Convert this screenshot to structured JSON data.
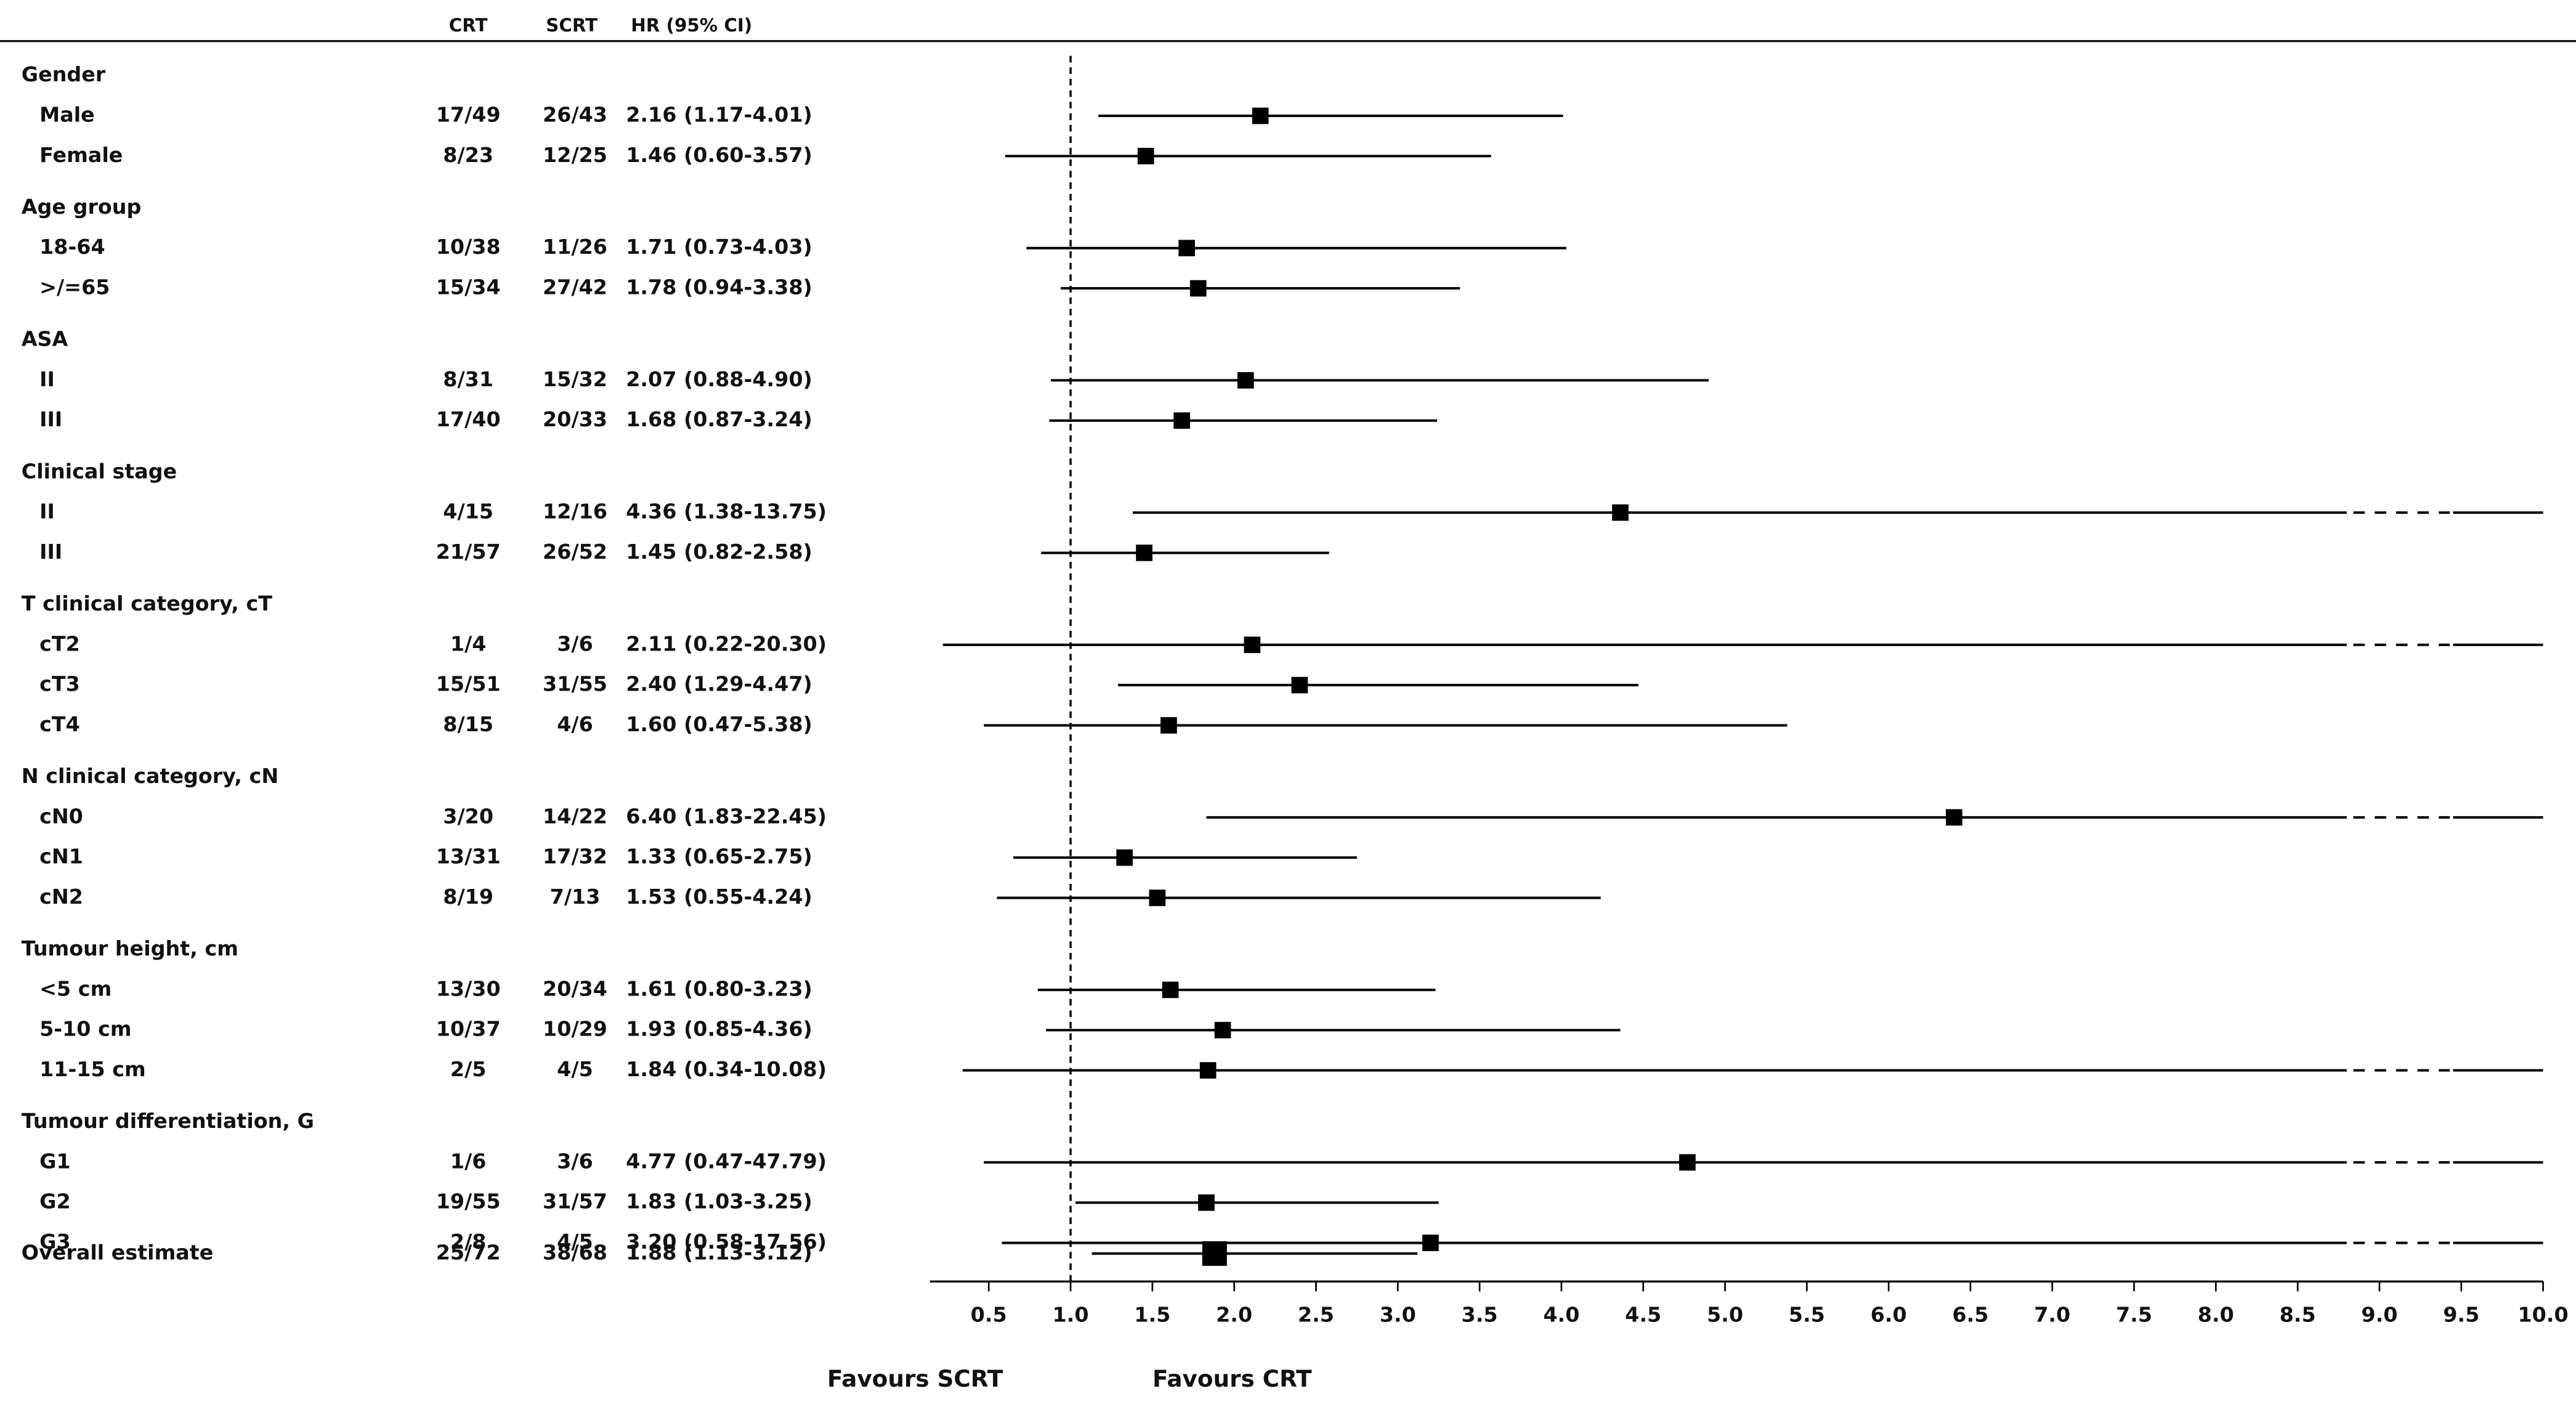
{
  "chart_data": {
    "type": "forest",
    "columns": [
      "CRT",
      "SCRT",
      "HR (95% CI)"
    ],
    "groups": [
      {
        "label": "Gender",
        "rows": [
          {
            "label": "Male",
            "crt": "17/49",
            "scrt": "26/43",
            "hr_label": "2.16 (1.17-4.01)",
            "hr": 2.16,
            "lo": 1.17,
            "hi": 4.01
          },
          {
            "label": "Female",
            "crt": "8/23",
            "scrt": "12/25",
            "hr_label": "1.46 (0.60-3.57)",
            "hr": 1.46,
            "lo": 0.6,
            "hi": 3.57
          }
        ]
      },
      {
        "label": "Age group",
        "rows": [
          {
            "label": "18-64",
            "crt": "10/38",
            "scrt": "11/26",
            "hr_label": "1.71 (0.73-4.03)",
            "hr": 1.71,
            "lo": 0.73,
            "hi": 4.03
          },
          {
            "label": ">/=65",
            "crt": "15/34",
            "scrt": "27/42",
            "hr_label": "1.78 (0.94-3.38)",
            "hr": 1.78,
            "lo": 0.94,
            "hi": 3.38
          }
        ]
      },
      {
        "label": "ASA",
        "rows": [
          {
            "label": "II",
            "crt": "8/31",
            "scrt": "15/32",
            "hr_label": "2.07 (0.88-4.90)",
            "hr": 2.07,
            "lo": 0.88,
            "hi": 4.9
          },
          {
            "label": "III",
            "crt": "17/40",
            "scrt": "20/33",
            "hr_label": "1.68 (0.87-3.24)",
            "hr": 1.68,
            "lo": 0.87,
            "hi": 3.24
          }
        ]
      },
      {
        "label": "Clinical stage",
        "rows": [
          {
            "label": "II",
            "crt": "4/15",
            "scrt": "12/16",
            "hr_label": "4.36 (1.38-13.75)",
            "hr": 4.36,
            "lo": 1.38,
            "hi": 13.75
          },
          {
            "label": "III",
            "crt": "21/57",
            "scrt": "26/52",
            "hr_label": "1.45 (0.82-2.58)",
            "hr": 1.45,
            "lo": 0.82,
            "hi": 2.58
          }
        ]
      },
      {
        "label": "T clinical category, cT",
        "rows": [
          {
            "label": "cT2",
            "crt": "1/4",
            "scrt": "3/6",
            "hr_label": "2.11 (0.22-20.30)",
            "hr": 2.11,
            "lo": 0.22,
            "hi": 20.3
          },
          {
            "label": "cT3",
            "crt": "15/51",
            "scrt": "31/55",
            "hr_label": "2.40 (1.29-4.47)",
            "hr": 2.4,
            "lo": 1.29,
            "hi": 4.47
          },
          {
            "label": "cT4",
            "crt": "8/15",
            "scrt": "4/6",
            "hr_label": "1.60 (0.47-5.38)",
            "hr": 1.6,
            "lo": 0.47,
            "hi": 5.38
          }
        ]
      },
      {
        "label": "N clinical category, cN",
        "rows": [
          {
            "label": "cN0",
            "crt": "3/20",
            "scrt": "14/22",
            "hr_label": "6.40 (1.83-22.45)",
            "hr": 6.4,
            "lo": 1.83,
            "hi": 22.45
          },
          {
            "label": "cN1",
            "crt": "13/31",
            "scrt": "17/32",
            "hr_label": "1.33 (0.65-2.75)",
            "hr": 1.33,
            "lo": 0.65,
            "hi": 2.75
          },
          {
            "label": "cN2",
            "crt": "8/19",
            "scrt": "7/13",
            "hr_label": "1.53 (0.55-4.24)",
            "hr": 1.53,
            "lo": 0.55,
            "hi": 4.24
          }
        ]
      },
      {
        "label": "Tumour height, cm",
        "rows": [
          {
            "label": "<5 cm",
            "crt": "13/30",
            "scrt": "20/34",
            "hr_label": "1.61 (0.80-3.23)",
            "hr": 1.61,
            "lo": 0.8,
            "hi": 3.23
          },
          {
            "label": "5-10 cm",
            "crt": "10/37",
            "scrt": "10/29",
            "hr_label": "1.93 (0.85-4.36)",
            "hr": 1.93,
            "lo": 0.85,
            "hi": 4.36
          },
          {
            "label": "11-15 cm",
            "crt": "2/5",
            "scrt": "4/5",
            "hr_label": "1.84 (0.34-10.08)",
            "hr": 1.84,
            "lo": 0.34,
            "hi": 10.08
          }
        ]
      },
      {
        "label": "Tumour differentiation, G",
        "rows": [
          {
            "label": "G1",
            "crt": "1/6",
            "scrt": "3/6",
            "hr_label": "4.77 (0.47-47.79)",
            "hr": 4.77,
            "lo": 0.47,
            "hi": 47.79
          },
          {
            "label": "G2",
            "crt": "19/55",
            "scrt": "31/57",
            "hr_label": "1.83 (1.03-3.25)",
            "hr": 1.83,
            "lo": 1.03,
            "hi": 3.25
          },
          {
            "label": "G3",
            "crt": "2/8",
            "scrt": "4/5",
            "hr_label": "3.20 (0.58-17.56)",
            "hr": 3.2,
            "lo": 0.58,
            "hi": 17.56
          }
        ]
      }
    ],
    "overall": {
      "label": "Overall estimate",
      "crt": "25/72",
      "scrt": "38/68",
      "hr_label": "1.88 (1.13-3.12)",
      "hr": 1.88,
      "lo": 1.13,
      "hi": 3.12
    },
    "reference": 1,
    "xlim": [
      0.14,
      10.0
    ],
    "xticks": [
      0.5,
      {
        "value": 1,
        "label": "1.0"
      },
      1.5,
      {
        "value": 2,
        "label": "2.0"
      },
      2.5,
      {
        "value": 3,
        "label": "3.0"
      },
      3.5,
      {
        "value": 4,
        "label": "4.0"
      },
      4.5,
      {
        "value": 5,
        "label": "5.0"
      },
      5.5,
      {
        "value": 6,
        "label": "6.0"
      },
      6.5,
      {
        "value": 7,
        "label": "7.0"
      },
      7.5,
      {
        "value": 8,
        "label": "8.0"
      },
      8.5,
      {
        "value": 9,
        "label": "9.0"
      },
      9.5,
      {
        "value": 10,
        "label": "10.0"
      }
    ],
    "favours_left": "Favours SCRT",
    "favours_right": "Favours CRT",
    "color": "#000000"
  }
}
